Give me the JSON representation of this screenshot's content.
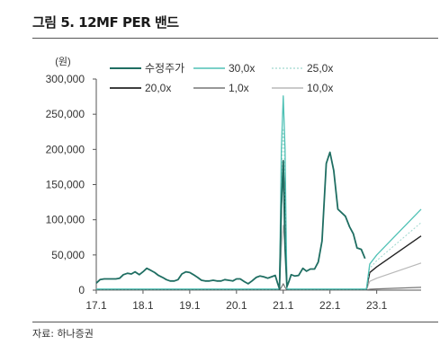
{
  "title": "그림 5. 12MF PER 밴드",
  "source": "자료: 하나증권",
  "chart_data": {
    "type": "line",
    "ylabel": "(원)",
    "ylim": [
      0,
      300000
    ],
    "yticks": [
      0,
      50000,
      100000,
      150000,
      200000,
      250000,
      300000
    ],
    "ytick_labels": [
      "0",
      "50,000",
      "100,000",
      "150,000",
      "200,000",
      "250,000",
      "300,000"
    ],
    "xlim": [
      2017.0,
      2023.95
    ],
    "xticks": [
      2017.0,
      2018.0,
      2019.0,
      2020.0,
      2021.0,
      2022.0,
      2023.0
    ],
    "xtick_labels": [
      "17.1",
      "18.1",
      "19.1",
      "20.1",
      "21.1",
      "22.1",
      "23.1"
    ],
    "legend_position": "top",
    "series": [
      {
        "name": "수정주가",
        "color": "#1f6e62",
        "width": 1.8,
        "dash": "",
        "x": [
          2017.0,
          2017.08,
          2017.17,
          2017.25,
          2017.33,
          2017.42,
          2017.5,
          2017.58,
          2017.67,
          2017.75,
          2017.83,
          2017.92,
          2018.0,
          2018.08,
          2018.17,
          2018.25,
          2018.33,
          2018.42,
          2018.5,
          2018.58,
          2018.67,
          2018.75,
          2018.83,
          2018.92,
          2019.0,
          2019.08,
          2019.17,
          2019.25,
          2019.33,
          2019.42,
          2019.5,
          2019.58,
          2019.67,
          2019.75,
          2019.83,
          2019.92,
          2020.0,
          2020.08,
          2020.17,
          2020.25,
          2020.33,
          2020.42,
          2020.5,
          2020.58,
          2020.67,
          2020.75,
          2020.83,
          2020.88,
          2020.92,
          2020.96,
          2021.0,
          2021.04,
          2021.08,
          2021.12,
          2021.17,
          2021.25,
          2021.33,
          2021.42,
          2021.5,
          2021.58,
          2021.67,
          2021.75,
          2021.83,
          2021.92,
          2022.0,
          2022.08,
          2022.17,
          2022.25,
          2022.33,
          2022.42,
          2022.5,
          2022.58,
          2022.67,
          2022.75
        ],
        "y": [
          10000,
          15000,
          16000,
          16000,
          16000,
          16000,
          17000,
          22000,
          24000,
          23000,
          26000,
          22000,
          26000,
          31000,
          28000,
          25000,
          21000,
          18000,
          15000,
          13000,
          13000,
          15000,
          23000,
          26000,
          25000,
          22000,
          18000,
          14000,
          13000,
          13000,
          14000,
          13000,
          13000,
          15000,
          14000,
          13000,
          16000,
          16000,
          12000,
          9000,
          13000,
          18000,
          20000,
          19000,
          17000,
          19000,
          21000,
          10000,
          2000,
          120000,
          184000,
          60000,
          5000,
          12000,
          22000,
          20000,
          21000,
          31000,
          27000,
          30000,
          30000,
          40000,
          70000,
          180000,
          196000,
          170000,
          115000,
          110000,
          105000,
          90000,
          80000,
          60000,
          58000,
          45000
        ]
      },
      {
        "name": "30,0x",
        "color": "#4fc1b5",
        "width": 1.3,
        "dash": "",
        "x": [
          2017.0,
          2020.8,
          2020.92,
          2020.96,
          2021.0,
          2021.04,
          2021.08,
          2021.2,
          2022.78,
          2022.85,
          2023.0,
          2023.95
        ],
        "y": [
          1500,
          1500,
          1500,
          200000,
          276000,
          200000,
          1500,
          1500,
          1500,
          37000,
          50000,
          115000
        ]
      },
      {
        "name": "25,0x",
        "color": "#9fd8cf",
        "width": 1.0,
        "dash": "2,2",
        "x": [
          2017.0,
          2020.8,
          2020.92,
          2020.96,
          2021.0,
          2021.04,
          2021.08,
          2021.2,
          2022.78,
          2022.85,
          2023.0,
          2023.95
        ],
        "y": [
          1200,
          1200,
          1200,
          160000,
          230000,
          160000,
          1200,
          1200,
          1200,
          31000,
          42000,
          96000
        ]
      },
      {
        "name": "20,0x",
        "color": "#222222",
        "width": 1.4,
        "dash": "",
        "x": [
          2017.0,
          2020.8,
          2020.92,
          2020.96,
          2021.0,
          2021.04,
          2021.08,
          2021.2,
          2022.78,
          2022.85,
          2023.0,
          2023.95
        ],
        "y": [
          1000,
          1000,
          1000,
          120000,
          184000,
          120000,
          1000,
          1000,
          1000,
          25000,
          33000,
          77000
        ]
      },
      {
        "name": "1,0x",
        "color": "#777777",
        "width": 1.2,
        "dash": "",
        "x": [
          2017.0,
          2020.8,
          2020.92,
          2020.96,
          2021.0,
          2021.04,
          2021.08,
          2021.2,
          2022.78,
          2022.85,
          2023.0,
          2023.95
        ],
        "y": [
          100,
          100,
          100,
          4000,
          9000,
          4000,
          100,
          100,
          100,
          1300,
          1800,
          4000
        ]
      },
      {
        "name": "10,0x",
        "color": "#b8b8b8",
        "width": 1.2,
        "dash": "",
        "x": [
          2017.0,
          2020.8,
          2020.92,
          2020.96,
          2021.0,
          2021.04,
          2021.08,
          2021.2,
          2022.78,
          2022.85,
          2023.0,
          2023.95
        ],
        "y": [
          500,
          500,
          500,
          60000,
          92000,
          60000,
          500,
          500,
          500,
          12500,
          17000,
          38500
        ]
      }
    ]
  }
}
